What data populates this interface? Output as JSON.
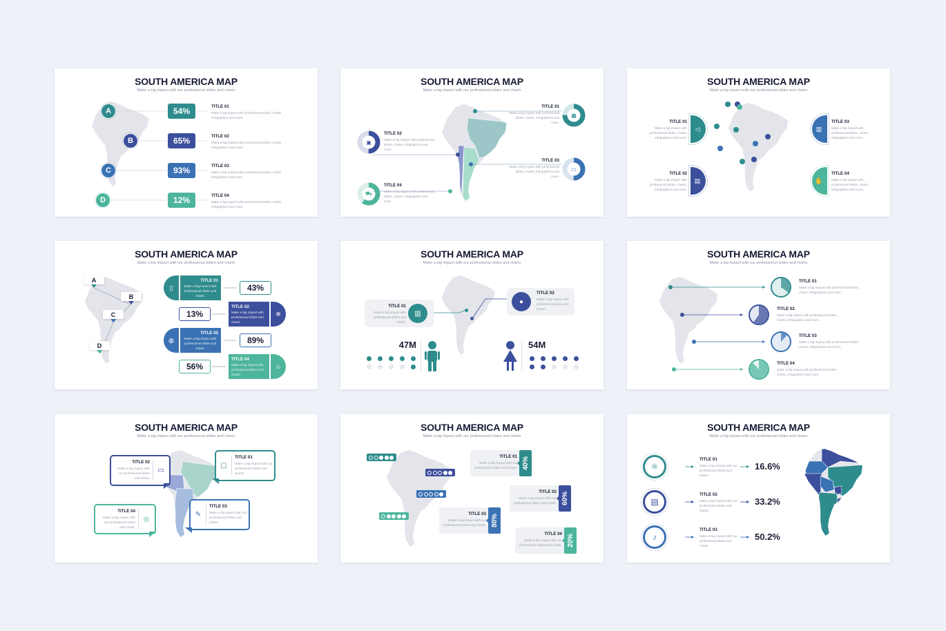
{
  "colors": {
    "background": "#eef1f7",
    "teal": "#2f8c8d",
    "navy": "#3b4f9c",
    "blue": "#3a72b3",
    "mint": "#4db59c",
    "map_gray": "#e3e5ea",
    "text_dark": "#1b1d33",
    "text_gray": "#9a9eb0"
  },
  "slides": [
    {
      "title": "SOUTH AMERICA MAP",
      "subtitle": "Make a big impact with our professional slides and charts",
      "items": [
        {
          "letter": "A",
          "value": "54%",
          "title": "TITLE 01",
          "desc": "Make a big impact with professional slides, charts, infographics and more."
        },
        {
          "letter": "B",
          "value": "65%",
          "title": "TITLE 02",
          "desc": "Make a big impact with professional slides, charts, infographics and more."
        },
        {
          "letter": "C",
          "value": "93%",
          "title": "TITLE 03",
          "desc": "Make a big impact with professional slides, charts, infographics and more."
        },
        {
          "letter": "D",
          "value": "12%",
          "title": "TITLE 04",
          "desc": "Make a big impact with professional slides, charts, infographics and more."
        }
      ]
    },
    {
      "title": "SOUTH AMERICA MAP",
      "subtitle": "Make a big impact with our professional slides and charts",
      "items": [
        {
          "title": "TITLE 01",
          "desc": "Make a big impact with professional slides, charts, infographics and more.",
          "progress": 0.75,
          "icon": "presentation-icon"
        },
        {
          "title": "TITLE 02",
          "desc": "Make a big impact with professional slides, charts, infographics and more.",
          "progress": 0.5,
          "icon": "monitor-chart-icon"
        },
        {
          "title": "TITLE 03",
          "desc": "Make a big impact with professional slides, charts, infographics and more.",
          "progress": 0.5,
          "icon": "laptop-icon"
        },
        {
          "title": "TITLE 04",
          "desc": "Make a big impact with professional slides, charts, infographics and more.",
          "progress": 0.6,
          "icon": "cart-icon"
        }
      ]
    },
    {
      "title": "SOUTH AMERICA MAP",
      "subtitle": "Make a big impact with our professional slides and charts",
      "items": [
        {
          "title": "TITLE 01",
          "desc": "Make a big impact with professional slides, charts, infographics and more.",
          "icon": "megaphone-icon"
        },
        {
          "title": "TITLE 02",
          "desc": "Make a big impact with professional slides, charts, infographics and more.",
          "icon": "book-icon"
        },
        {
          "title": "TITLE 03",
          "desc": "Make a big impact with professional slides, charts, infographics and more.",
          "icon": "building-icon"
        },
        {
          "title": "TITLE 04",
          "desc": "Make a big impact with professional slides, charts, infographics and more.",
          "icon": "handshake-icon"
        }
      ]
    },
    {
      "title": "SOUTH AMERICA MAP",
      "subtitle": "Make a big impact with our professional slides and charts",
      "letters": [
        "A",
        "B",
        "C",
        "D"
      ],
      "items": [
        {
          "title": "TITLE 01",
          "desc": "Make a big impact with professional slides and charts.",
          "value": "43%",
          "icon": "document-icon"
        },
        {
          "title": "TITLE 02",
          "desc": "Make a big impact with professional slides and charts.",
          "value": "13%",
          "icon": "gear-icon"
        },
        {
          "title": "TITLE 03",
          "desc": "Make a big impact with professional slides and charts.",
          "value": "89%",
          "icon": "globe-icon"
        },
        {
          "title": "TITLE 04",
          "desc": "Make a big impact with professional slides and charts.",
          "value": "56%",
          "icon": "mask-icon"
        }
      ]
    },
    {
      "title": "SOUTH AMERICA MAP",
      "subtitle": "Make a big impact with our professional slides and charts",
      "items": [
        {
          "title": "TITLE 01",
          "desc": "Make a big impact with professional slides and charts.",
          "icon": "bank-icon"
        },
        {
          "title": "TITLE 02",
          "desc": "Make a big impact with professional slides and charts.",
          "icon": "apple-icon"
        }
      ],
      "stats": [
        {
          "value": "47M",
          "icon": "male-icon",
          "filled_dots": 6,
          "total_dots": 10
        },
        {
          "value": "54M",
          "icon": "female-icon",
          "filled_dots": 7,
          "total_dots": 10
        }
      ]
    },
    {
      "title": "SOUTH AMERICA MAP",
      "subtitle": "Make a big impact with our professional slides and charts",
      "items": [
        {
          "title": "TITLE 01",
          "desc": "Make a big impact with professional slides, charts, infographics and more.",
          "fraction": 0.35
        },
        {
          "title": "TITLE 02",
          "desc": "Make a big impact with professional slides, charts, infographics and more.",
          "fraction": 0.6
        },
        {
          "title": "TITLE 03",
          "desc": "Make a big impact with professional slides, charts, infographics and more.",
          "fraction": 0.12
        },
        {
          "title": "TITLE 04",
          "desc": "Make a big impact with professional slides, charts, infographics and more.",
          "fraction": 0.88
        }
      ]
    },
    {
      "title": "SOUTH AMERICA MAP",
      "subtitle": "Make a big impact with our professional slides and charts",
      "items": [
        {
          "title": "TITLE 01",
          "desc": "Make a big impact with our professional slides and charts.",
          "icon": "backpack-icon"
        },
        {
          "title": "TITLE 02",
          "desc": "Make a big impact with our professional slides and charts.",
          "icon": "abc-board-icon"
        },
        {
          "title": "TITLE 03",
          "desc": "Make a big impact with our professional slides and charts.",
          "icon": "pencil-ruler-icon"
        },
        {
          "title": "TITLE 04",
          "desc": "Make a big impact with our professional slides and charts.",
          "icon": "target-icon"
        }
      ]
    },
    {
      "title": "SOUTH AMERICA MAP",
      "subtitle": "Make a big impact with our professional slides and charts",
      "items": [
        {
          "title": "TITLE 01",
          "desc": "Make a big impact with our professional slides and charts.",
          "value": "40%",
          "rating": 3
        },
        {
          "title": "TITLE 02",
          "desc": "Make a big impact with our professional slides and charts.",
          "value": "60%",
          "rating": 2
        },
        {
          "title": "TITLE 03",
          "desc": "Make a big impact with our professional slides and charts.",
          "value": "80%",
          "rating": 1
        },
        {
          "title": "TITLE 04",
          "desc": "Make a big impact with our professional slides and charts.",
          "value": "20%",
          "rating": 4
        }
      ]
    },
    {
      "title": "SOUTH AMERICA MAP",
      "subtitle": "Make a big impact with our professional slides and charts",
      "items": [
        {
          "title": "TITLE 01",
          "desc": "Make a big impact with our professional slides and charts.",
          "value": "16.6%",
          "icon": "atom-icon"
        },
        {
          "title": "TITLE 02",
          "desc": "Make a big impact with our professional slides and charts.",
          "value": "33.2%",
          "icon": "open-book-icon"
        },
        {
          "title": "TITLE 03",
          "desc": "Make a big impact with our professional slides and charts.",
          "value": "50.2%",
          "icon": "bell-icon"
        }
      ]
    }
  ]
}
